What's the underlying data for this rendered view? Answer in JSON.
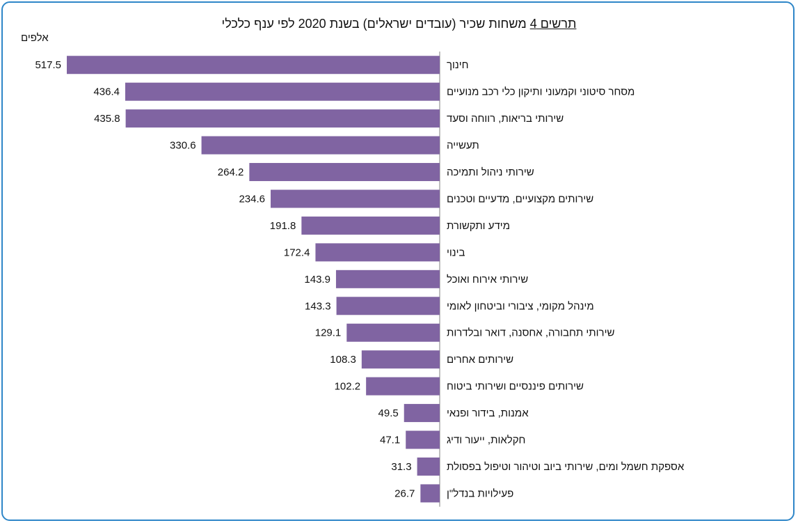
{
  "title": {
    "figure_label": "תרשים 4",
    "text": "משחות שכיר (עובדים ישראלים) בשנת 2020 לפי ענף כלכלי"
  },
  "colors": {
    "bar": "#8064a2",
    "frame": "#2e86c8",
    "axis": "#7f7f7f"
  },
  "chart_data": {
    "type": "bar",
    "orientation": "horizontal",
    "unit_label": "אלפים",
    "xlim": [
      0,
      517.5
    ],
    "grid": false,
    "legend": "none",
    "categories": [
      "חינוך",
      "מסחר סיטוני וקמעוני ותיקון כלי רכב מנועיים",
      "שירותי בריאות, רווחה וסעד",
      "תעשייה",
      "שירותי ניהול ותמיכה",
      "שירותים מקצועיים, מדעיים וטכנים",
      "מידע ותקשורת",
      "בינוי",
      "שירותי אירוח ואוכל",
      "מינהל מקומי, ציבורי וביטחון לאומי",
      "שירותי תחבורה, אחסנה, דואר ובלדרות",
      "שירותים אחרים",
      "שירותים פיננסיים ושירותי ביטוח",
      "אמנות, בידור ופנאי",
      "חקלאות, ייעור ודיג",
      "אספקת חשמל ומים, שירותי ביוב וטיהור וטיפול בפסולת",
      "פעילויות בנדל\"ן"
    ],
    "values": [
      517.5,
      436.4,
      435.8,
      330.6,
      264.2,
      234.6,
      191.8,
      172.4,
      143.9,
      143.3,
      129.1,
      108.3,
      102.2,
      49.5,
      47.1,
      31.3,
      26.7
    ],
    "value_labels": [
      "517.5",
      "436.4",
      "435.8",
      "330.6",
      "264.2",
      "234.6",
      "191.8",
      "172.4",
      "143.9",
      "143.3",
      "129.1",
      "108.3",
      "102.2",
      "49.5",
      "47.1",
      "31.3",
      "26.7"
    ]
  }
}
